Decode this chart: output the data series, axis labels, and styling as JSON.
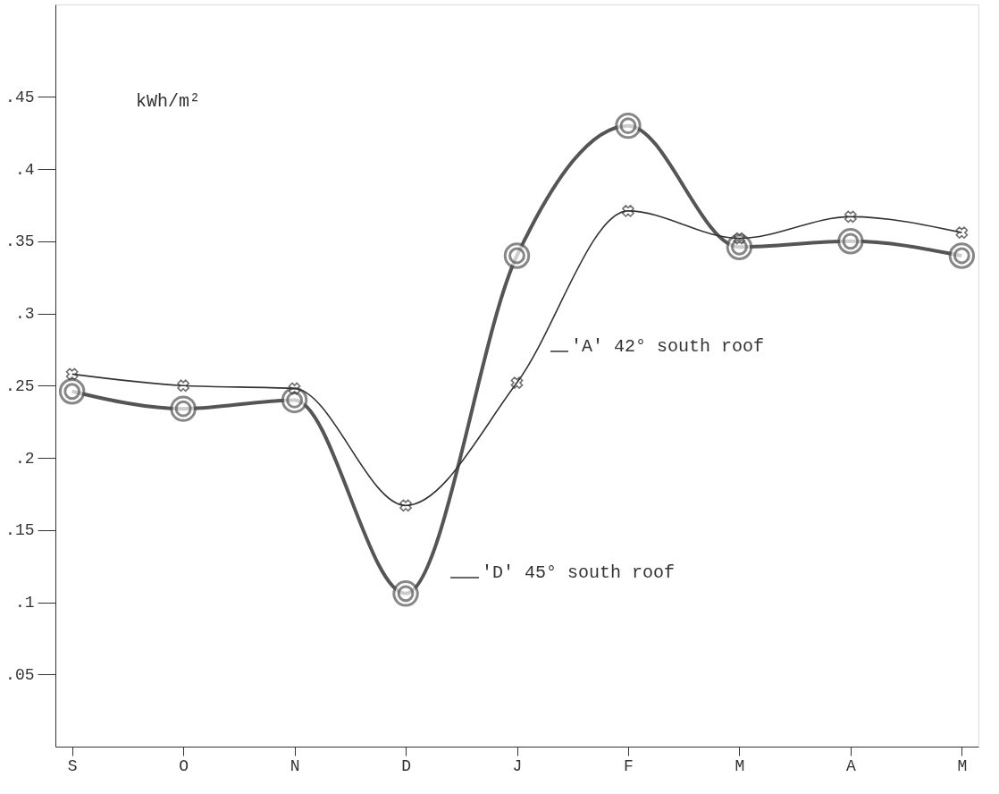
{
  "chart_data": {
    "type": "line",
    "ylabel": "kWh/m²",
    "categories": [
      "S",
      "O",
      "N",
      "D",
      "J",
      "F",
      "M",
      "A",
      "M"
    ],
    "series": [
      {
        "color": "#555555",
        "marker": "circle",
        "values": [
          0.246,
          0.234,
          0.24,
          0.106,
          0.34,
          0.43,
          0.346,
          0.35,
          0.34
        ]
      },
      {
        "color": "#333333",
        "marker": "cross",
        "values": [
          0.258,
          0.25,
          0.248,
          0.167,
          0.252,
          0.371,
          0.352,
          0.367,
          0.356
        ]
      }
    ],
    "ylim": [
      0,
      0.514
    ],
    "yticks": [
      {
        "value": 0.45,
        "label": ".45"
      },
      {
        "value": 0.4,
        "label": ".4"
      },
      {
        "value": 0.35,
        "label": ".35"
      },
      {
        "value": 0.3,
        "label": ".3"
      },
      {
        "value": 0.25,
        "label": ".25"
      },
      {
        "value": 0.2,
        "label": ".2"
      },
      {
        "value": 0.15,
        "label": ".15"
      },
      {
        "value": 0.1,
        "label": ".1"
      },
      {
        "value": 0.05,
        "label": ".05"
      }
    ],
    "annotations": [
      "'A' 42° south roof",
      "'D' 45° south roof"
    ],
    "grid": false
  }
}
